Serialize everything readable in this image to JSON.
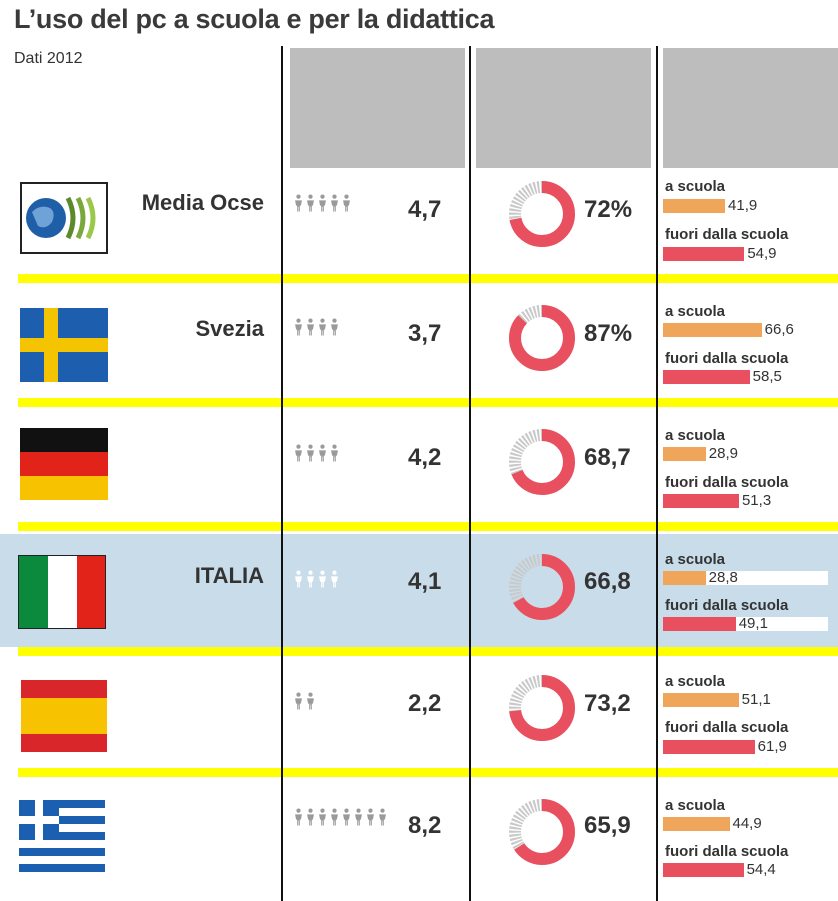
{
  "title": "L’uso del pc a scuola e per la didattica",
  "subtitle": "Dati 2012",
  "labels": {
    "a_scuola": "a scuola",
    "fuori": "fuori dalla scuola"
  },
  "colors": {
    "yellow_separator": "#ffff00",
    "header_gray": "#bdbdbd",
    "highlight_band": "#c8dcea",
    "donut_red": "#e9505f",
    "donut_gray": "#c9c9c9",
    "bar_orange": "#f0a65a",
    "bar_red": "#e9505f"
  },
  "chart_data": {
    "type": "table",
    "title": "L’uso del pc a scuola e per la didattica",
    "subtitle": "Dati 2012",
    "columns": [
      "",
      "",
      "",
      ""
    ],
    "rows": [
      {
        "country": "Media Ocse",
        "flag": "oecd-logo",
        "value": "4,7",
        "value_num": 4.7,
        "percent": "72%",
        "percent_num": 72,
        "a_scuola": "41,9",
        "a_scuola_num": 41.9,
        "fuori": "54,9",
        "fuori_num": 54.9
      },
      {
        "country": "Svezia",
        "flag": "sweden-flag",
        "value": "3,7",
        "value_num": 3.7,
        "percent": "87%",
        "percent_num": 87,
        "a_scuola": "66,6",
        "a_scuola_num": 66.6,
        "fuori": "58,5",
        "fuori_num": 58.5
      },
      {
        "country": "",
        "flag": "germany-flag",
        "value": "4,2",
        "value_num": 4.2,
        "percent": "68,7",
        "percent_num": 68.7,
        "a_scuola": "28,9",
        "a_scuola_num": 28.9,
        "fuori": "51,3",
        "fuori_num": 51.3
      },
      {
        "country": "ITALIA",
        "flag": "italy-flag",
        "value": "4,1",
        "value_num": 4.1,
        "percent": "66,8",
        "percent_num": 66.8,
        "a_scuola": "28,8",
        "a_scuola_num": 28.8,
        "fuori": "49,1",
        "fuori_num": 49.1
      },
      {
        "country": "",
        "flag": "spain-flag",
        "value": "2,2",
        "value_num": 2.2,
        "percent": "73,2",
        "percent_num": 73.2,
        "a_scuola": "51,1",
        "a_scuola_num": 51.1,
        "fuori": "61,9",
        "fuori_num": 61.9
      },
      {
        "country": "",
        "flag": "greece-flag",
        "value": "8,2",
        "value_num": 8.2,
        "percent": "65,9",
        "percent_num": 65.9,
        "a_scuola": "44,9",
        "a_scuola_num": 44.9,
        "fuori": "54,4",
        "fuori_num": 54.4
      }
    ],
    "bar_scale_max": 72
  }
}
